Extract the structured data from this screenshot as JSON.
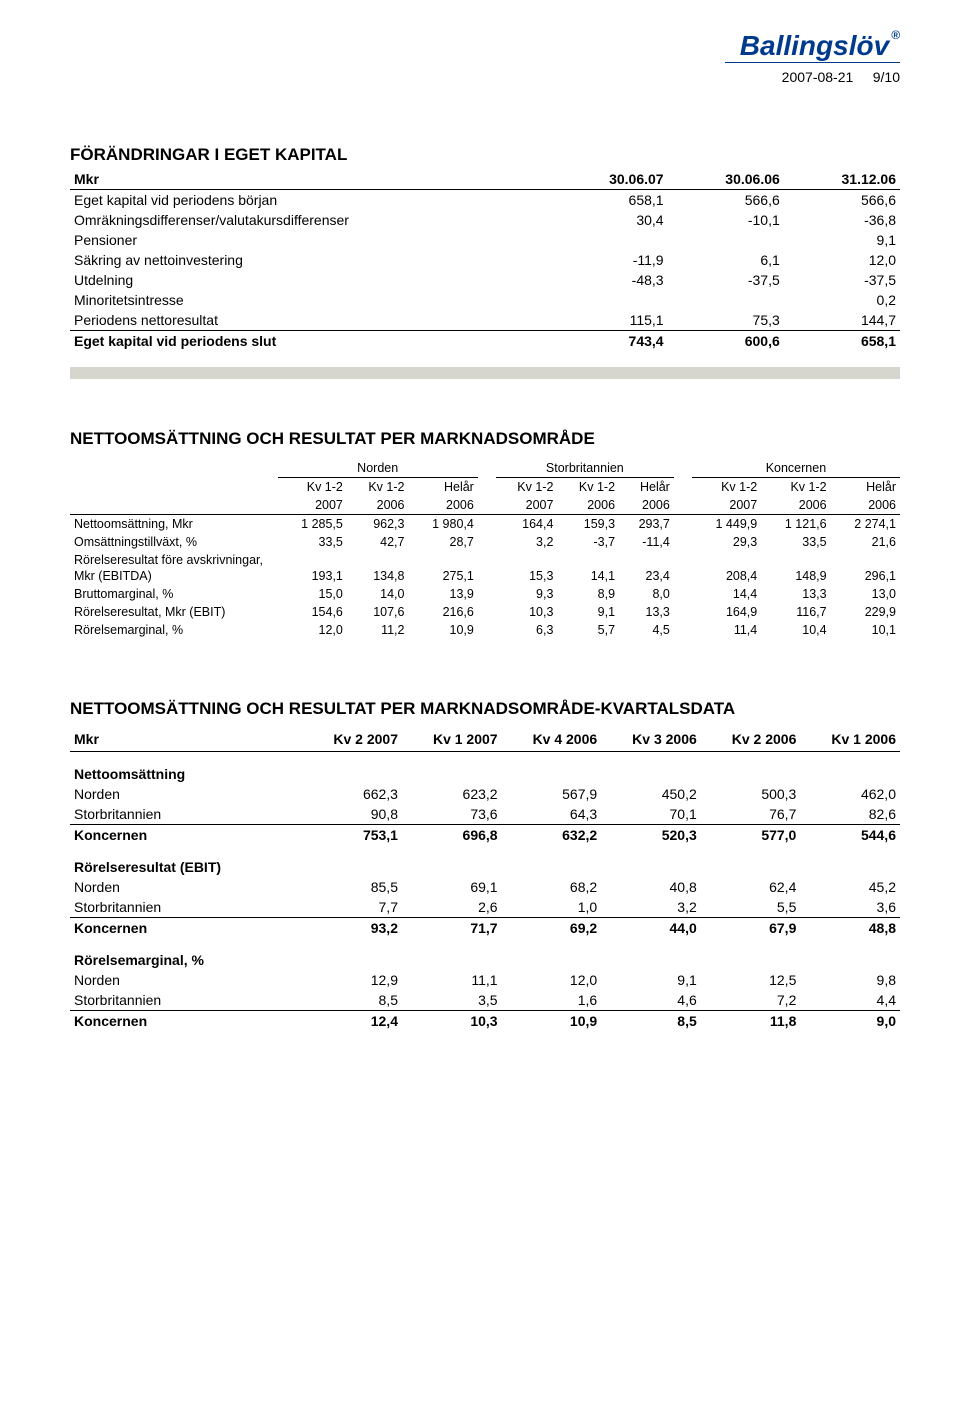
{
  "header": {
    "logo": "Ballingslöv",
    "date": "2007-08-21",
    "page": "9/10"
  },
  "equity": {
    "title": "FÖRÄNDRINGAR I EGET KAPITAL",
    "mkr": "Mkr",
    "cols": [
      "30.06.07",
      "30.06.06",
      "31.12.06"
    ],
    "rows": [
      {
        "label": "Eget kapital vid periodens början",
        "v": [
          "658,1",
          "566,6",
          "566,6"
        ]
      },
      {
        "label": "Omräkningsdifferenser/valutakursdifferenser",
        "v": [
          "30,4",
          "-10,1",
          "-36,8"
        ]
      },
      {
        "label": "Pensioner",
        "v": [
          "",
          "",
          "9,1"
        ]
      },
      {
        "label": "Säkring av nettoinvestering",
        "v": [
          "-11,9",
          "6,1",
          "12,0"
        ]
      },
      {
        "label": "Utdelning",
        "v": [
          "-48,3",
          "-37,5",
          "-37,5"
        ]
      },
      {
        "label": "Minoritetsintresse",
        "v": [
          "",
          "",
          "0,2"
        ]
      },
      {
        "label": "Periodens nettoresultat",
        "v": [
          "115,1",
          "75,3",
          "144,7"
        ],
        "borderBottom": true
      },
      {
        "label": "Eget kapital vid periodens slut",
        "v": [
          "743,4",
          "600,6",
          "658,1"
        ],
        "bold": true
      }
    ]
  },
  "market": {
    "title": "NETTOOMSÄTTNING OCH RESULTAT PER MARKNADSOMRÅDE",
    "groups": [
      "Norden",
      "Storbritannien",
      "Koncernen"
    ],
    "subcols0": [
      "Kv 1-2",
      "Kv 1-2",
      "Helår",
      "Kv 1-2",
      "Kv 1-2",
      "Helår",
      "Kv 1-2",
      "Kv 1-2",
      "Helår"
    ],
    "subcols1": [
      "2007",
      "2006",
      "2006",
      "2007",
      "2006",
      "2006",
      "2007",
      "2006",
      "2006"
    ],
    "rows": [
      {
        "label": "Nettoomsättning, Mkr",
        "v": [
          "1 285,5",
          "962,3",
          "1 980,4",
          "164,4",
          "159,3",
          "293,7",
          "1 449,9",
          "1 121,6",
          "2 274,1"
        ]
      },
      {
        "label": "Omsättningstillväxt, %",
        "v": [
          "33,5",
          "42,7",
          "28,7",
          "3,2",
          "-3,7",
          "-11,4",
          "29,3",
          "33,5",
          "21,6"
        ]
      },
      {
        "label": "Rörelseresultat före avskrivningar,",
        "v": [
          "",
          "",
          "",
          "",
          "",
          "",
          "",
          "",
          ""
        ],
        "nopad": true
      },
      {
        "label": "Mkr (EBITDA)",
        "v": [
          "193,1",
          "134,8",
          "275,1",
          "15,3",
          "14,1",
          "23,4",
          "208,4",
          "148,9",
          "296,1"
        ]
      },
      {
        "label": "Bruttomarginal, %",
        "v": [
          "15,0",
          "14,0",
          "13,9",
          "9,3",
          "8,9",
          "8,0",
          "14,4",
          "13,3",
          "13,0"
        ]
      },
      {
        "label": "Rörelseresultat, Mkr (EBIT)",
        "v": [
          "154,6",
          "107,6",
          "216,6",
          "10,3",
          "9,1",
          "13,3",
          "164,9",
          "116,7",
          "229,9"
        ]
      },
      {
        "label": "Rörelsemarginal, %",
        "v": [
          "12,0",
          "11,2",
          "10,9",
          "6,3",
          "5,7",
          "4,5",
          "11,4",
          "10,4",
          "10,1"
        ]
      }
    ]
  },
  "quarterly": {
    "title": "NETTOOMSÄTTNING OCH RESULTAT PER MARKNADSOMRÅDE-KVARTALSDATA",
    "mkr": "Mkr",
    "cols": [
      "Kv 2 2007",
      "Kv 1 2007",
      "Kv 4 2006",
      "Kv 3 2006",
      "Kv 2 2006",
      "Kv 1 2006"
    ],
    "sections": [
      {
        "title": "Nettoomsättning",
        "rows": [
          {
            "label": "Norden",
            "v": [
              "662,3",
              "623,2",
              "567,9",
              "450,2",
              "500,3",
              "462,0"
            ]
          },
          {
            "label": "Storbritannien",
            "v": [
              "90,8",
              "73,6",
              "64,3",
              "70,1",
              "76,7",
              "82,6"
            ],
            "borderBottom": true
          },
          {
            "label": "Koncernen",
            "v": [
              "753,1",
              "696,8",
              "632,2",
              "520,3",
              "577,0",
              "544,6"
            ],
            "bold": true
          }
        ]
      },
      {
        "title": "Rörelseresultat (EBIT)",
        "rows": [
          {
            "label": "Norden",
            "v": [
              "85,5",
              "69,1",
              "68,2",
              "40,8",
              "62,4",
              "45,2"
            ]
          },
          {
            "label": "Storbritannien",
            "v": [
              "7,7",
              "2,6",
              "1,0",
              "3,2",
              "5,5",
              "3,6"
            ],
            "borderBottom": true
          },
          {
            "label": "Koncernen",
            "v": [
              "93,2",
              "71,7",
              "69,2",
              "44,0",
              "67,9",
              "48,8"
            ],
            "bold": true
          }
        ]
      },
      {
        "title": "Rörelsemarginal, %",
        "rows": [
          {
            "label": "Norden",
            "v": [
              "12,9",
              "11,1",
              "12,0",
              "9,1",
              "12,5",
              "9,8"
            ]
          },
          {
            "label": "Storbritannien",
            "v": [
              "8,5",
              "3,5",
              "1,6",
              "4,6",
              "7,2",
              "4,4"
            ],
            "borderBottom": true
          },
          {
            "label": "Koncernen",
            "v": [
              "12,4",
              "10,3",
              "10,9",
              "8,5",
              "11,8",
              "9,0"
            ],
            "bold": true
          }
        ]
      }
    ]
  }
}
